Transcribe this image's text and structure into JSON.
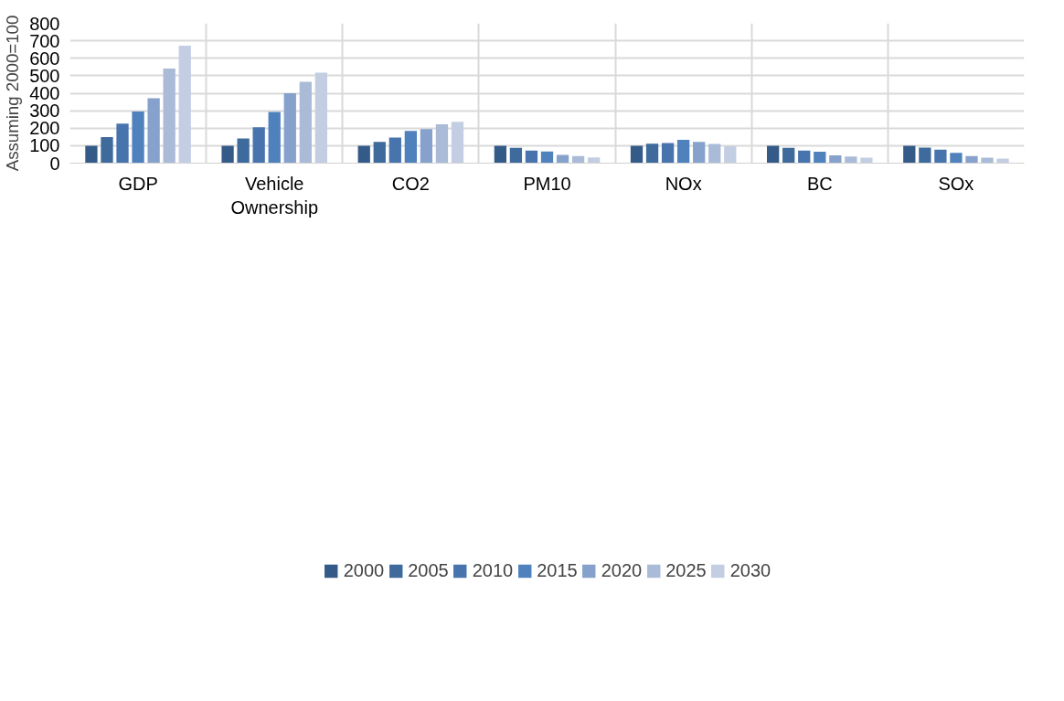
{
  "chart_data": {
    "type": "bar",
    "ylabel": "Assuming 2000=100",
    "categories": [
      "GDP",
      "Vehicle Ownership",
      "CO2",
      "PM10",
      "NOx",
      "BC",
      "SOx"
    ],
    "series": [
      {
        "name": "2000",
        "color": "#345a88",
        "values": [
          100,
          100,
          100,
          100,
          100,
          100,
          100
        ]
      },
      {
        "name": "2005",
        "color": "#3e6a9c",
        "values": [
          149,
          141,
          121,
          87,
          111,
          88,
          89
        ]
      },
      {
        "name": "2010",
        "color": "#4874ae",
        "values": [
          226,
          205,
          147,
          72,
          115,
          72,
          77
        ]
      },
      {
        "name": "2015",
        "color": "#4f81bd",
        "values": [
          296,
          293,
          184,
          67,
          133,
          65,
          59
        ]
      },
      {
        "name": "2020",
        "color": "#86a2cc",
        "values": [
          371,
          400,
          195,
          47,
          121,
          44,
          40
        ]
      },
      {
        "name": "2025",
        "color": "#aabbd8",
        "values": [
          541,
          466,
          222,
          40,
          110,
          38,
          32
        ]
      },
      {
        "name": "2030",
        "color": "#c4cee2",
        "values": [
          672,
          518,
          236,
          33,
          97,
          32,
          26
        ]
      }
    ],
    "ylim": [
      0,
      800
    ],
    "yticks": [
      0,
      100,
      200,
      300,
      400,
      500,
      600,
      700,
      800
    ],
    "grid": true,
    "legend": "bottom"
  }
}
